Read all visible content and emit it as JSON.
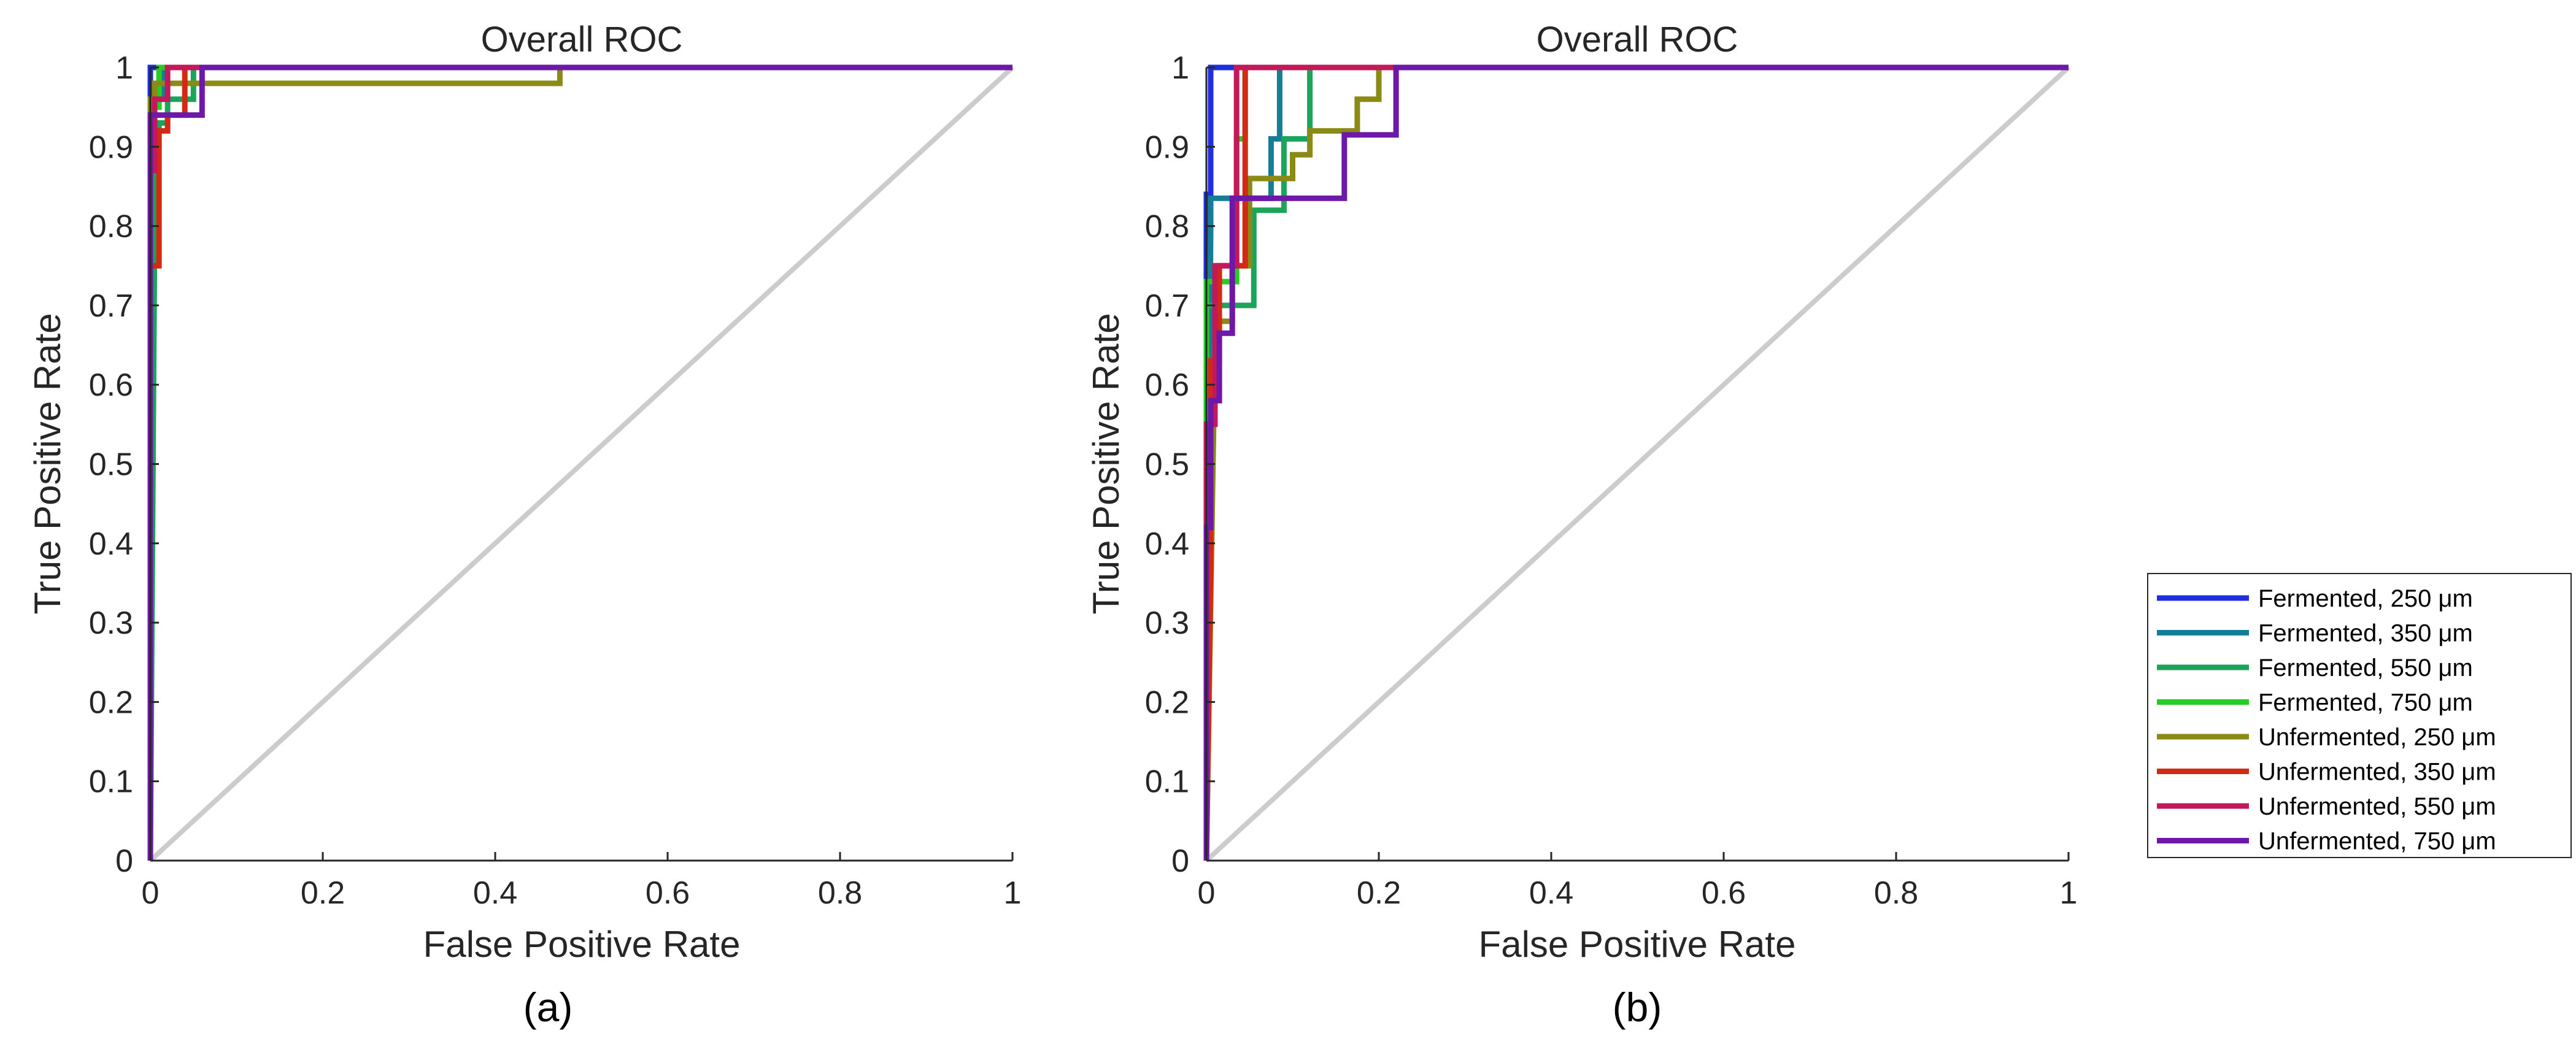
{
  "chart_data": [
    {
      "type": "line",
      "panel_label": "(a)",
      "title": "Overall ROC",
      "xlabel": "False Positive Rate",
      "ylabel": "True Positive Rate",
      "xlim": [
        0,
        1
      ],
      "ylim": [
        0,
        1
      ],
      "xticks": [
        "0",
        "0.2",
        "0.4",
        "0.6",
        "0.8",
        "1"
      ],
      "yticks": [
        "0",
        "0.1",
        "0.2",
        "0.3",
        "0.4",
        "0.5",
        "0.6",
        "0.7",
        "0.8",
        "0.9",
        "1"
      ],
      "reference_line": {
        "x": [
          0,
          1
        ],
        "y": [
          0,
          1
        ],
        "color": "#cccccc"
      },
      "series": [
        {
          "name": "Fermented, 250 μm",
          "color": "#1f2fe0",
          "x": [
            0,
            0,
            0.01,
            1
          ],
          "y": [
            0,
            1,
            1,
            1
          ]
        },
        {
          "name": "Fermented, 350 μm",
          "color": "#177c96",
          "x": [
            0,
            0,
            0.015,
            0.015,
            1
          ],
          "y": [
            0,
            0.96,
            0.96,
            1,
            1
          ]
        },
        {
          "name": "Fermented, 550 μm",
          "color": "#1aa55a",
          "x": [
            0,
            0.005,
            0.005,
            0.01,
            0.01,
            0.02,
            0.02,
            0.05,
            0.05,
            1
          ],
          "y": [
            0,
            0.8,
            0.9,
            0.9,
            0.93,
            0.93,
            0.96,
            0.96,
            1,
            1
          ]
        },
        {
          "name": "Fermented, 750 μm",
          "color": "#27cc27",
          "x": [
            0,
            0,
            0.01,
            0.01,
            1
          ],
          "y": [
            0,
            0.95,
            0.95,
            1,
            1
          ]
        },
        {
          "name": "Unfermented, 250 μm",
          "color": "#8b8a15",
          "x": [
            0,
            0,
            0.005,
            0.005,
            0.475,
            0.475,
            1
          ],
          "y": [
            0,
            0.96,
            0.96,
            0.98,
            0.98,
            1,
            1
          ]
        },
        {
          "name": "Unfermented, 350 μm",
          "color": "#d42a14",
          "x": [
            0,
            0,
            0.01,
            0.01,
            0.02,
            0.02,
            0.04,
            0.04,
            1
          ],
          "y": [
            0,
            0.75,
            0.75,
            0.92,
            0.92,
            0.94,
            0.94,
            1,
            1
          ]
        },
        {
          "name": "Unfermented, 550 μm",
          "color": "#c3185a",
          "x": [
            0,
            0,
            0.005,
            0.005,
            0.02,
            0.02,
            1
          ],
          "y": [
            0,
            0.87,
            0.87,
            0.96,
            0.96,
            1,
            1
          ]
        },
        {
          "name": "Unfermented, 750 μm",
          "color": "#6d18a8",
          "x": [
            0,
            0,
            0.03,
            0.03,
            0.06,
            0.06,
            1
          ],
          "y": [
            0,
            0.94,
            0.94,
            0.94,
            0.94,
            1,
            1
          ]
        }
      ]
    },
    {
      "type": "line",
      "panel_label": "(b)",
      "title": "Overall ROC",
      "xlabel": "False Positive Rate",
      "ylabel": "True Positive Rate",
      "xlim": [
        0,
        1
      ],
      "ylim": [
        0,
        1
      ],
      "xticks": [
        "0",
        "0.2",
        "0.4",
        "0.6",
        "0.8",
        "1"
      ],
      "yticks": [
        "0",
        "0.1",
        "0.2",
        "0.3",
        "0.4",
        "0.5",
        "0.6",
        "0.7",
        "0.8",
        "0.9",
        "1"
      ],
      "reference_line": {
        "x": [
          0,
          1
        ],
        "y": [
          0,
          1
        ],
        "color": "#cccccc"
      },
      "series": [
        {
          "name": "Fermented, 250 μm",
          "color": "#1f2fe0",
          "x": [
            0,
            0,
            0.005,
            0.005,
            1
          ],
          "y": [
            0,
            0.84,
            0.84,
            1,
            1
          ]
        },
        {
          "name": "Fermented, 350 μm",
          "color": "#177c96",
          "x": [
            0,
            0.005,
            0.005,
            0.075,
            0.075,
            0.085,
            0.085,
            1
          ],
          "y": [
            0,
            0.8,
            0.835,
            0.835,
            0.91,
            0.91,
            1,
            1
          ]
        },
        {
          "name": "Fermented, 550 μm",
          "color": "#1aa55a",
          "x": [
            0,
            0,
            0.055,
            0.055,
            0.09,
            0.09,
            0.12,
            0.12,
            1
          ],
          "y": [
            0,
            0.7,
            0.7,
            0.82,
            0.82,
            0.91,
            0.91,
            1,
            1
          ]
        },
        {
          "name": "Fermented, 750 μm",
          "color": "#27cc27",
          "x": [
            0,
            0,
            0.01,
            0.01,
            0.035,
            0.035,
            0.045,
            0.045,
            1
          ],
          "y": [
            0,
            0.73,
            0.73,
            0.73,
            0.73,
            0.91,
            0.91,
            1,
            1
          ]
        },
        {
          "name": "Unfermented, 250 μm",
          "color": "#8b8a15",
          "x": [
            0,
            0.01,
            0.01,
            0.03,
            0.03,
            0.05,
            0.05,
            0.07,
            0.07,
            0.1,
            0.1,
            0.12,
            0.12,
            0.175,
            0.175,
            0.2,
            0.2,
            1
          ],
          "y": [
            0,
            0.65,
            0.68,
            0.68,
            0.75,
            0.75,
            0.86,
            0.86,
            0.86,
            0.86,
            0.89,
            0.89,
            0.92,
            0.92,
            0.96,
            0.96,
            1,
            1
          ]
        },
        {
          "name": "Unfermented, 350 μm",
          "color": "#d42a14",
          "x": [
            0,
            0.005,
            0.005,
            0.015,
            0.015,
            0.045,
            0.045,
            1
          ],
          "y": [
            0,
            0.37,
            0.63,
            0.63,
            0.75,
            0.75,
            1,
            1
          ]
        },
        {
          "name": "Unfermented, 550 μm",
          "color": "#c3185a",
          "x": [
            0,
            0,
            0.01,
            0.01,
            0.035,
            0.035,
            1
          ],
          "y": [
            0,
            0.55,
            0.55,
            0.75,
            0.75,
            1,
            1
          ]
        },
        {
          "name": "Unfermented, 750 μm",
          "color": "#6d18a8",
          "x": [
            0,
            0,
            0.005,
            0.005,
            0.015,
            0.015,
            0.03,
            0.03,
            0.05,
            0.05,
            0.16,
            0.16,
            0.22,
            0.22,
            1
          ],
          "y": [
            0,
            0.42,
            0.42,
            0.58,
            0.58,
            0.665,
            0.665,
            0.835,
            0.835,
            0.835,
            0.835,
            0.915,
            0.915,
            1,
            1
          ]
        }
      ]
    }
  ],
  "legend": {
    "location": "right",
    "entries": [
      {
        "label": "Fermented, 250 μm",
        "color": "#1f2fe0"
      },
      {
        "label": "Fermented, 350 μm",
        "color": "#177c96"
      },
      {
        "label": "Fermented, 550 μm",
        "color": "#1aa55a"
      },
      {
        "label": "Fermented, 750 μm",
        "color": "#27cc27"
      },
      {
        "label": "Unfermented, 250 μm",
        "color": "#8b8a15"
      },
      {
        "label": "Unfermented, 350 μm",
        "color": "#d42a14"
      },
      {
        "label": "Unfermented, 550 μm",
        "color": "#c3185a"
      },
      {
        "label": "Unfermented, 750 μm",
        "color": "#6d18a8"
      }
    ]
  }
}
